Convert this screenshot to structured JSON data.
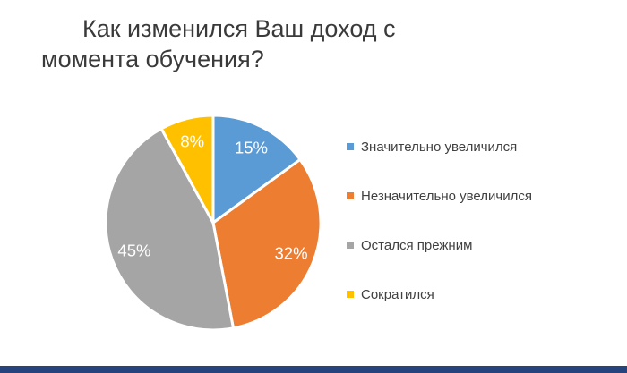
{
  "title": {
    "line1": "Как изменился Ваш доход с",
    "line2": "момента обучения?",
    "full": "Как изменился Ваш доход с момента обучения?"
  },
  "chart_data": {
    "type": "pie",
    "title": "Как изменился Ваш доход с момента обучения?",
    "categories": [
      "Значительно увеличился",
      "Незначительно увеличился",
      "Остался прежним",
      "Сократился"
    ],
    "values": [
      15,
      32,
      45,
      8
    ],
    "unit": "%",
    "labels": [
      "15%",
      "32%",
      "45%",
      "8%"
    ],
    "colors": [
      "#5B9BD5",
      "#ED7D31",
      "#A5A5A5",
      "#FFC000"
    ],
    "data_label_color": "#FFFFFF",
    "slice_border_color": "#FFFFFF",
    "start_angle_deg": 0,
    "direction": "clockwise",
    "legend_position": "right"
  },
  "legend": {
    "items": [
      {
        "label": "Значительно увеличился",
        "color": "#5B9BD5"
      },
      {
        "label": "Незначительно увеличился",
        "color": "#ED7D31"
      },
      {
        "label": "Остался прежним",
        "color": "#A5A5A5"
      },
      {
        "label": "Сократился",
        "color": "#FFC000"
      }
    ]
  },
  "footer": {
    "bar_color": "#26437E"
  },
  "background_color": "#FFFFFF"
}
